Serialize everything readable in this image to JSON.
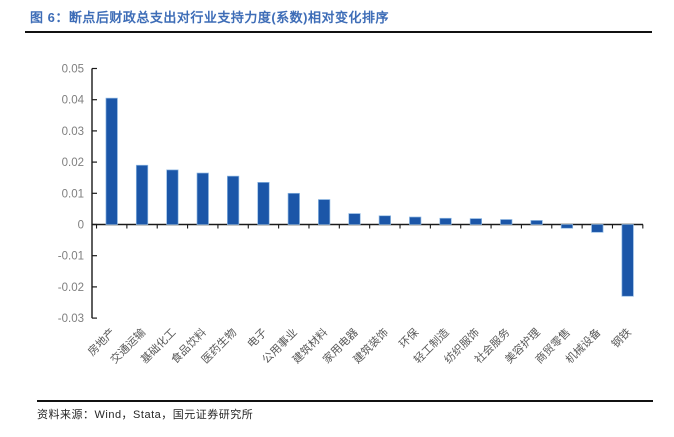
{
  "page": {
    "title": "图 6：断点后财政总支出对行业支持力度(系数)相对变化排序",
    "source": "资料来源：Wind，Stata，国元证券研究所"
  },
  "colors": {
    "bar": "#1B56A8",
    "bar_edge": "#8FB8E3",
    "title": "#3E6DB7",
    "axis": "#1A1A1A",
    "tick_label": "#7F7F7F",
    "category_label": "#595959",
    "rule": "#111111"
  },
  "chart_data": {
    "type": "bar",
    "title": "断点后财政总支出对行业支持力度(系数)相对变化排序",
    "categories": [
      "房地产",
      "交通运输",
      "基础化工",
      "食品饮料",
      "医药生物",
      "电子",
      "公用事业",
      "建筑材料",
      "家用电器",
      "建筑装饰",
      "环保",
      "轻工制造",
      "纺织服饰",
      "社会服务",
      "美容护理",
      "商贸零售",
      "机械设备",
      "钢铁"
    ],
    "values": [
      0.0405,
      0.019,
      0.0175,
      0.0165,
      0.0155,
      0.0135,
      0.01,
      0.008,
      0.0035,
      0.0028,
      0.0024,
      0.002,
      0.0019,
      0.0016,
      0.0013,
      -0.0012,
      -0.0025,
      -0.023
    ],
    "xlabel": "",
    "ylabel": "",
    "ylim": [
      -0.03,
      0.05
    ],
    "ytick_labels": [
      "0.05",
      "0.04",
      "0.03",
      "0.02",
      "0.01",
      "0",
      "-0.01",
      "-0.02",
      "-0.03"
    ],
    "grid": false,
    "legend": null,
    "category_label_rotation_deg": -45
  }
}
